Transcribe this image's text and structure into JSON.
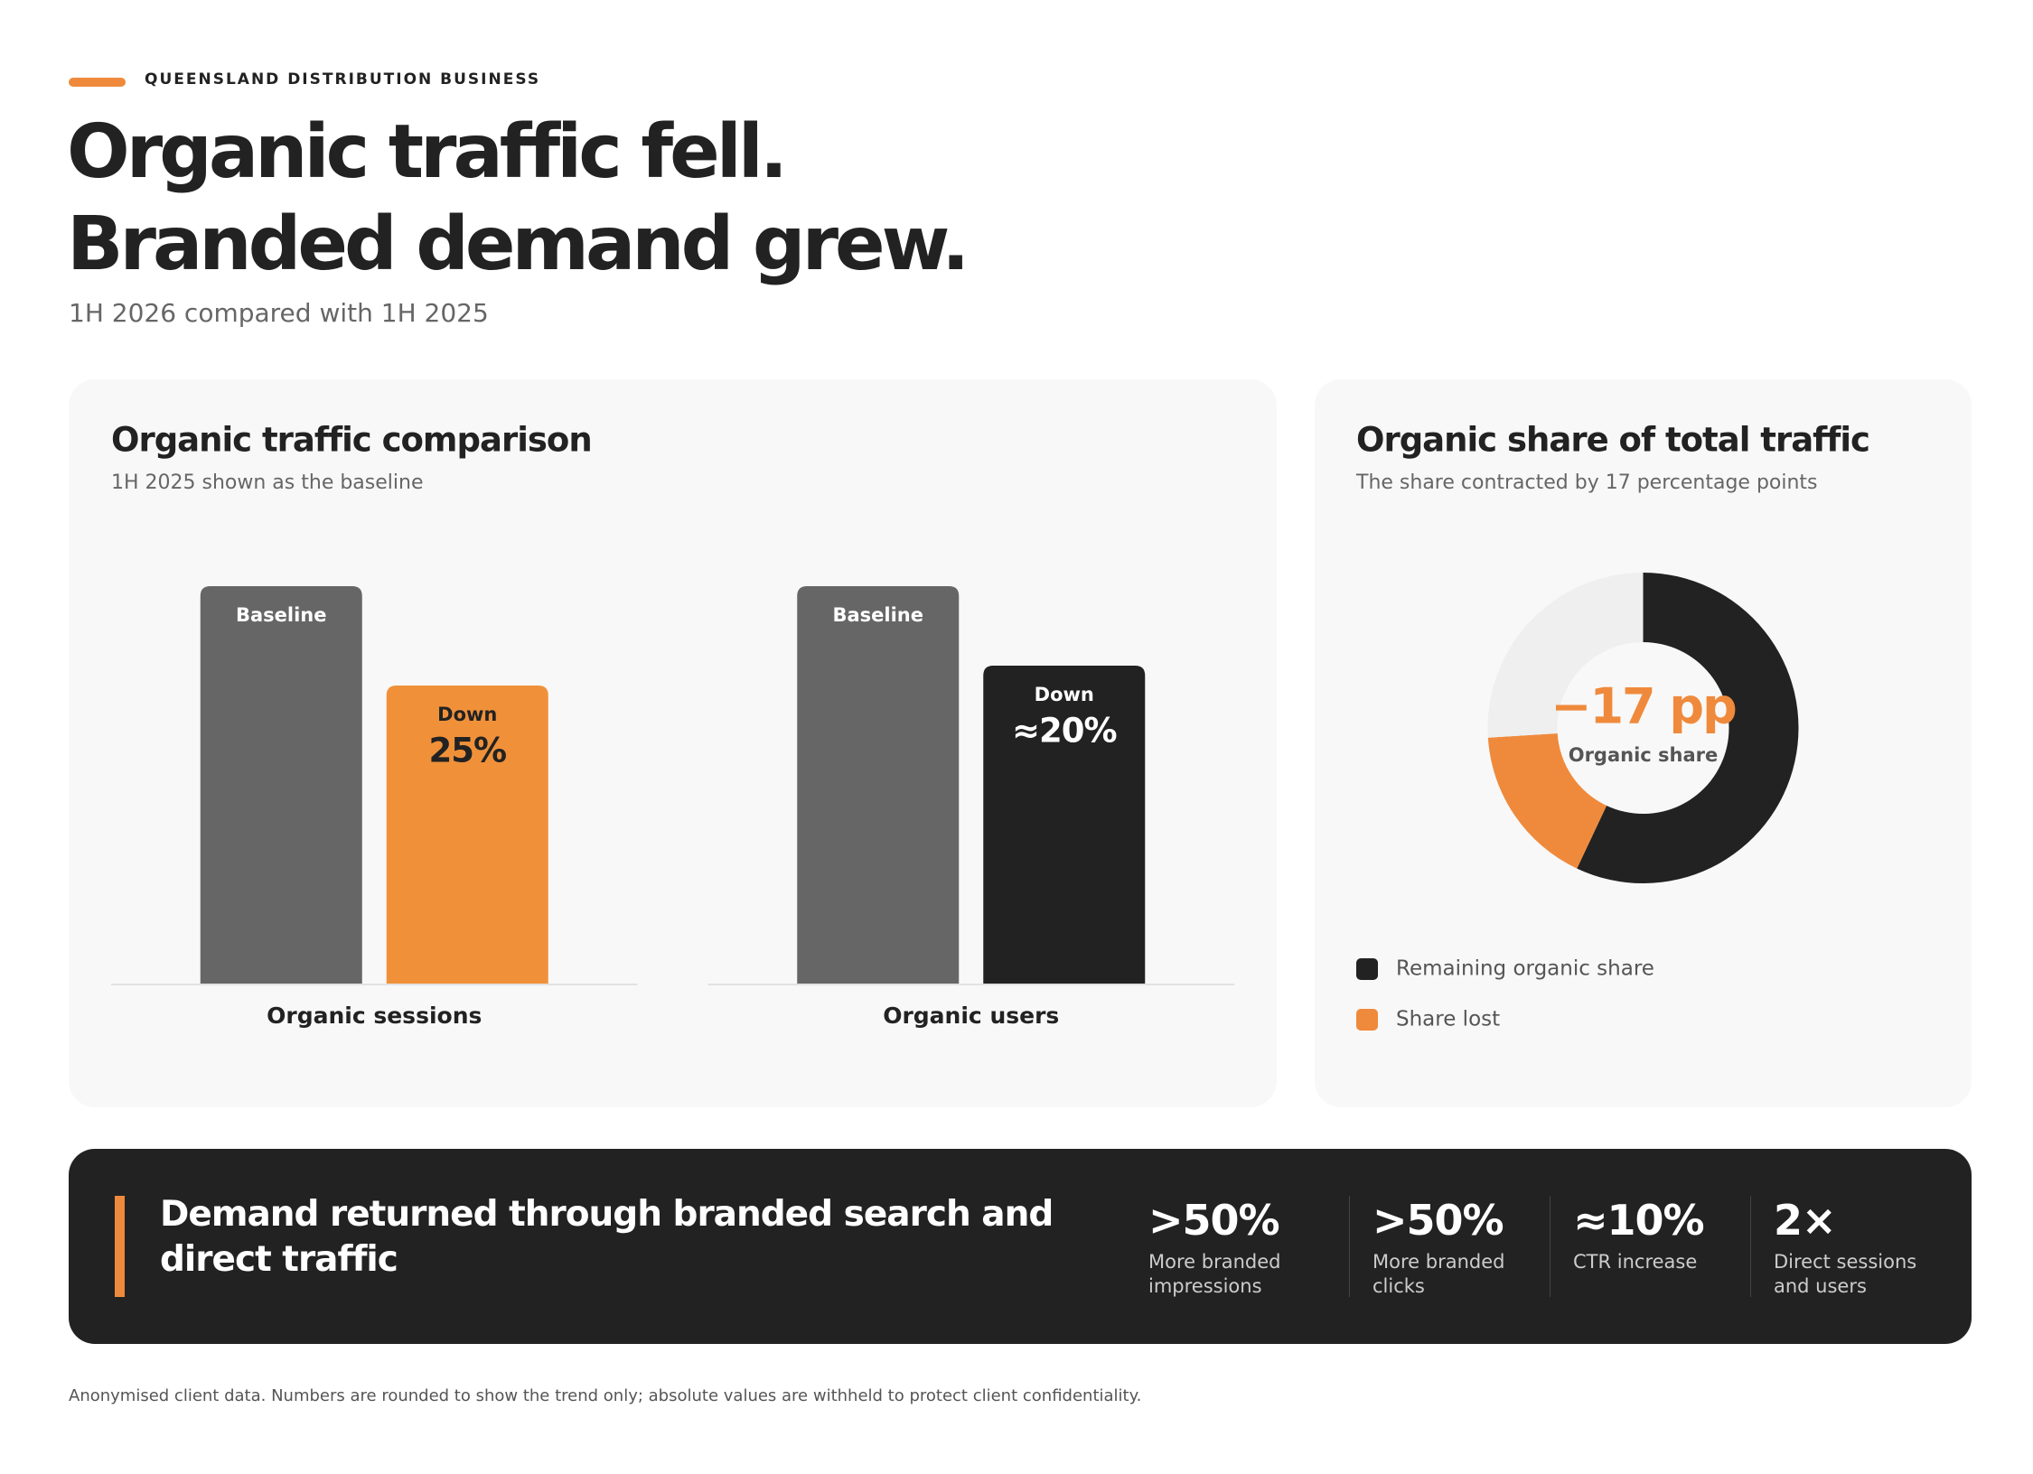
{
  "header": {
    "eyebrow": "QUEENSLAND DISTRIBUTION BUSINESS",
    "title_lines": [
      "Organic traffic fell.",
      "Branded demand grew."
    ],
    "subtitle": "1H 2026 compared with 1H 2025"
  },
  "chart_data": [
    {
      "type": "bar",
      "title": "Organic traffic comparison",
      "subtitle": "1H 2025 shown as the baseline",
      "categories": [
        "Organic sessions",
        "Organic users"
      ],
      "ylim": [
        0,
        100
      ],
      "series": [
        {
          "name": "Baseline",
          "color": "#666666",
          "label_color": "#ffffff",
          "values": [
            100,
            100
          ]
        },
        {
          "name": "Down",
          "colors": [
            "#f0913a",
            "#222222"
          ],
          "label_colors": [
            "#222222",
            "#ffffff"
          ],
          "values": [
            75,
            80
          ],
          "annotations": [
            "25%",
            "≈20%"
          ]
        }
      ]
    },
    {
      "type": "pie",
      "title": "Organic share of total traffic",
      "subtitle": "The share contracted by 17 percentage points",
      "categories": [
        "Remaining organic share",
        "Share lost",
        null
      ],
      "values": [
        57,
        17,
        26
      ],
      "colors": [
        "#222222",
        "#ef8a3c",
        "#efefef"
      ],
      "center_value": "−17 pp",
      "center_label": "Organic share",
      "center_color": "#ef8a3c"
    }
  ],
  "banner": {
    "title": "Demand returned through branded search and direct traffic",
    "stats": [
      {
        "value": ">50%",
        "label": "More branded impressions"
      },
      {
        "value": ">50%",
        "label": "More branded clicks"
      },
      {
        "value": "≈10%",
        "label": "CTR increase"
      },
      {
        "value": "2×",
        "label": "Direct sessions and users"
      }
    ]
  },
  "footnote": "Anonymised client data. Numbers are rounded to show the trend only; absolute values are withheld to protect client confidentiality."
}
